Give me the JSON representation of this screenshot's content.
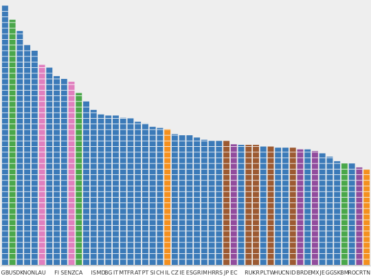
{
  "chart_data": {
    "type": "bar",
    "stacked": true,
    "segment_value": 1,
    "grid": false,
    "legend": "none",
    "title": "",
    "xlabel": "",
    "ylabel": "",
    "ylim": [
      0,
      47
    ],
    "colors": {
      "background": "#eeeeee",
      "segment_separator": "#ffffff",
      "blue": "#3b7ab8",
      "green": "#4aa74a",
      "pink": "#e07fbe",
      "orange": "#f4901f",
      "brown": "#9c5a32",
      "purple": "#914c9d",
      "axis": "#bbbbbb",
      "tick_text": "#333333"
    },
    "bars": [
      {
        "label": "GB",
        "value": 46.0,
        "color": "blue"
      },
      {
        "label": "US",
        "value": 43.5,
        "color": "green"
      },
      {
        "label": "DK",
        "value": 41.5,
        "color": "blue"
      },
      {
        "label": "NO",
        "value": 39.0,
        "color": "blue"
      },
      {
        "label": "NL",
        "value": 38.0,
        "color": "blue"
      },
      {
        "label": "AU",
        "value": 35.5,
        "color": "pink"
      },
      {
        "label": "",
        "value": 35.0,
        "color": "blue"
      },
      {
        "label": "FI",
        "value": 33.5,
        "color": "blue"
      },
      {
        "label": "SE",
        "value": 33.0,
        "color": "blue"
      },
      {
        "label": "NZ",
        "value": 32.5,
        "color": "pink"
      },
      {
        "label": "CA",
        "value": 30.5,
        "color": "green"
      },
      {
        "label": "",
        "value": 29.0,
        "color": "blue"
      },
      {
        "label": "IS",
        "value": 27.5,
        "color": "blue"
      },
      {
        "label": "MD",
        "value": 26.7,
        "color": "blue"
      },
      {
        "label": "BG",
        "value": 26.5,
        "color": "blue"
      },
      {
        "label": "IT",
        "value": 26.5,
        "color": "blue"
      },
      {
        "label": "MT",
        "value": 26.1,
        "color": "blue"
      },
      {
        "label": "FR",
        "value": 26.0,
        "color": "blue"
      },
      {
        "label": "AT",
        "value": 25.4,
        "color": "blue"
      },
      {
        "label": "PT",
        "value": 25.1,
        "color": "blue"
      },
      {
        "label": "SI",
        "value": 24.5,
        "color": "blue"
      },
      {
        "label": "CH",
        "value": 24.3,
        "color": "blue"
      },
      {
        "label": "IL",
        "value": 24.1,
        "color": "orange"
      },
      {
        "label": "CZ",
        "value": 23.2,
        "color": "blue"
      },
      {
        "label": "IE",
        "value": 23.0,
        "color": "blue"
      },
      {
        "label": "ES",
        "value": 23.0,
        "color": "blue"
      },
      {
        "label": "GR",
        "value": 22.6,
        "color": "blue"
      },
      {
        "label": "IM",
        "value": 22.2,
        "color": "blue"
      },
      {
        "label": "HR",
        "value": 22.0,
        "color": "blue"
      },
      {
        "label": "RS",
        "value": 22.0,
        "color": "blue"
      },
      {
        "label": "JP",
        "value": 22.0,
        "color": "brown"
      },
      {
        "label": "EC",
        "value": 21.4,
        "color": "purple"
      },
      {
        "label": "",
        "value": 21.3,
        "color": "blue"
      },
      {
        "label": "RU",
        "value": 21.3,
        "color": "brown"
      },
      {
        "label": "KR",
        "value": 21.3,
        "color": "brown"
      },
      {
        "label": "PL",
        "value": 21.0,
        "color": "blue"
      },
      {
        "label": "TW",
        "value": 21.0,
        "color": "brown"
      },
      {
        "label": "HU",
        "value": 20.8,
        "color": "blue"
      },
      {
        "label": "CN",
        "value": 20.8,
        "color": "blue"
      },
      {
        "label": "ID",
        "value": 20.8,
        "color": "brown"
      },
      {
        "label": "BR",
        "value": 20.5,
        "color": "purple"
      },
      {
        "label": "DE",
        "value": 20.5,
        "color": "blue"
      },
      {
        "label": "MX",
        "value": 20.2,
        "color": "purple"
      },
      {
        "label": "JE",
        "value": 19.8,
        "color": "blue"
      },
      {
        "label": "GG",
        "value": 19.2,
        "color": "blue"
      },
      {
        "label": "SK",
        "value": 18.4,
        "color": "blue"
      },
      {
        "label": "BM",
        "value": 18.0,
        "color": "green"
      },
      {
        "label": "RO",
        "value": 18.0,
        "color": "blue"
      },
      {
        "label": "CR",
        "value": 17.3,
        "color": "purple"
      },
      {
        "label": "TN",
        "value": 16.9,
        "color": "orange"
      }
    ]
  }
}
